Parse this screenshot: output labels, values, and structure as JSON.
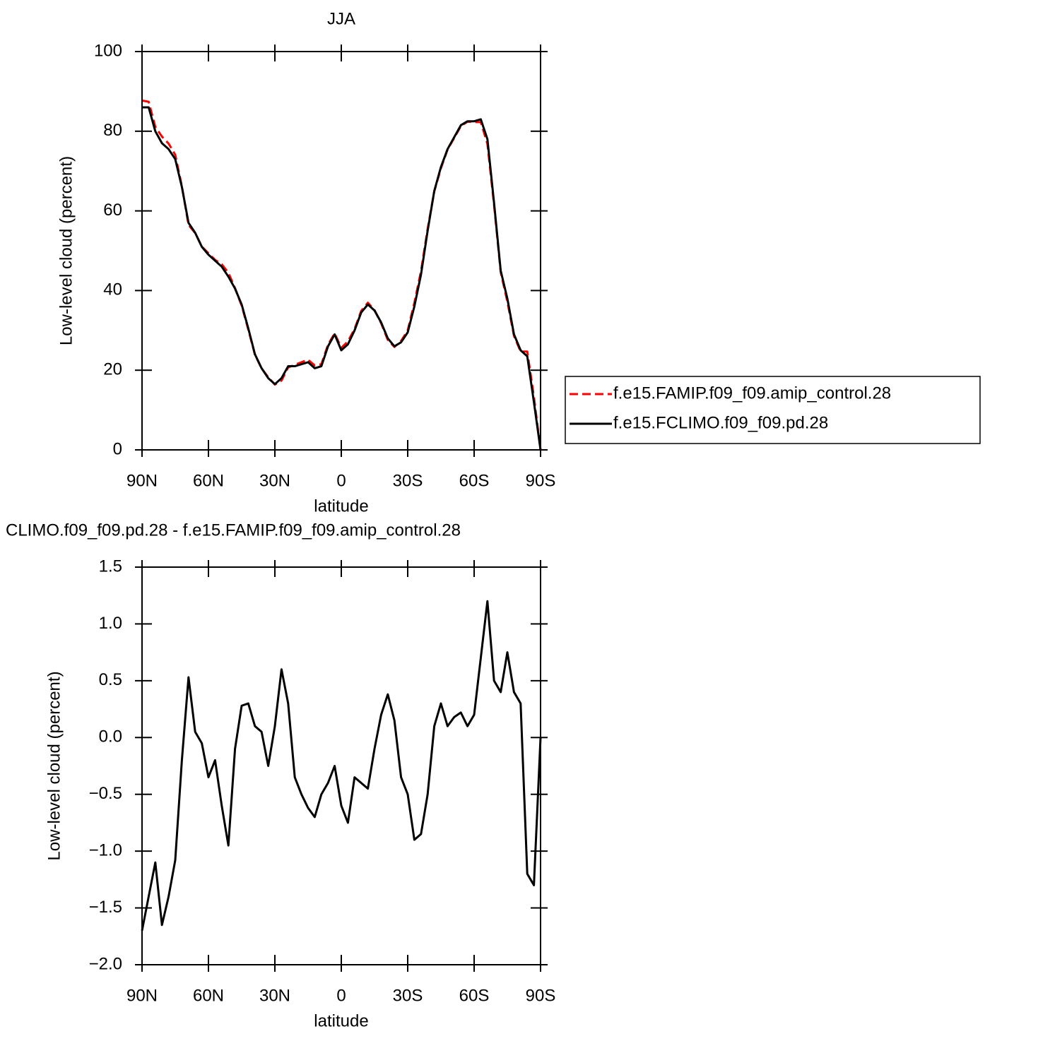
{
  "chart_data": [
    {
      "type": "line",
      "title": "JJA",
      "xlabel": "latitude",
      "ylabel": "Low-level cloud (percent)",
      "x": [
        90,
        87,
        84,
        81,
        78,
        75,
        72,
        69,
        66,
        63,
        60,
        57,
        54,
        51,
        48,
        45,
        42,
        39,
        36,
        33,
        30,
        27,
        24,
        21,
        18,
        15,
        12,
        9,
        6,
        3,
        0,
        -3,
        -6,
        -9,
        -12,
        -15,
        -18,
        -21,
        -24,
        -27,
        -30,
        -33,
        -36,
        -39,
        -42,
        -45,
        -48,
        -51,
        -54,
        -57,
        -60,
        -63,
        -66,
        -69,
        -72,
        -75,
        -78,
        -81,
        -84,
        -87,
        -90
      ],
      "series": [
        {
          "name": "f.e15.FAMIP.f09_f09.amip_control.28",
          "color": "#ff0000",
          "dashed": true,
          "values": [
            87.7,
            87.4,
            81.1,
            78.65,
            76.9,
            74.08,
            66.2,
            56.47,
            54.45,
            51.05,
            49.35,
            47.7,
            46.6,
            44.45,
            40.6,
            36.22,
            30.2,
            23.9,
            20.45,
            18.25,
            16.4,
            17.4,
            20.7,
            21.35,
            22,
            22.62,
            21.2,
            21.5,
            26.4,
            29.25,
            25.6,
            27.25,
            30.35,
            34.9,
            36.95,
            35.1,
            31.8,
            27.62,
            25.85,
            27.35,
            30,
            36.9,
            44.85,
            55.5,
            64.9,
            70.7,
            75.4,
            78.32,
            81.28,
            82.4,
            82.3,
            82.3,
            76.8,
            61.5,
            44.6,
            37.25,
            28.6,
            24.7,
            24.7,
            13.3,
            0
          ]
        },
        {
          "name": "f.e15.FCLIMO.f09_f09.pd.28",
          "color": "#000000",
          "dashed": false,
          "values": [
            86,
            86,
            80,
            77,
            75.5,
            73,
            66,
            57,
            54.5,
            51,
            49,
            47.5,
            46,
            43.5,
            40.5,
            36.5,
            30.5,
            24,
            20.5,
            18,
            16.5,
            18,
            21,
            21,
            21.5,
            22,
            20.5,
            21,
            26,
            29,
            25,
            26.5,
            30,
            34.5,
            36.5,
            35,
            32,
            28,
            26,
            27,
            29.5,
            36,
            44,
            55,
            65,
            71,
            75.5,
            78.5,
            81.5,
            82.5,
            82.5,
            83,
            78,
            62,
            45,
            38,
            29,
            25,
            23.5,
            12,
            0
          ]
        }
      ],
      "xlim": [
        90,
        -90
      ],
      "xticks": [
        {
          "value": 90,
          "label": "90N"
        },
        {
          "value": 60,
          "label": "60N"
        },
        {
          "value": 30,
          "label": "30N"
        },
        0,
        {
          "value": -30,
          "label": "30S"
        },
        {
          "value": -60,
          "label": "60S"
        },
        {
          "value": -90,
          "label": "90S"
        }
      ],
      "ylim": [
        0,
        100
      ],
      "yticks": [
        0,
        20,
        40,
        60,
        80,
        100
      ],
      "legend": "right"
    },
    {
      "type": "line",
      "title": "CLIMO.f09_f09.pd.28 - f.e15.FAMIP.f09_f09.amip_control.28",
      "xlabel": "latitude",
      "ylabel": "Low-level cloud (percent)",
      "x": [
        90,
        87,
        84,
        81,
        78,
        75,
        72,
        69,
        66,
        63,
        60,
        57,
        54,
        51,
        48,
        45,
        42,
        39,
        36,
        33,
        30,
        27,
        24,
        21,
        18,
        15,
        12,
        9,
        6,
        3,
        0,
        -3,
        -6,
        -9,
        -12,
        -15,
        -18,
        -21,
        -24,
        -27,
        -30,
        -33,
        -36,
        -39,
        -42,
        -45,
        -48,
        -51,
        -54,
        -57,
        -60,
        -63,
        -66,
        -69,
        -72,
        -75,
        -78,
        -81,
        -84,
        -87,
        -90
      ],
      "series": [
        {
          "color": "#000000",
          "dashed": false,
          "values": [
            -1.7,
            -1.4,
            -1.1,
            -1.65,
            -1.4,
            -1.08,
            -0.2,
            0.53,
            0.05,
            -0.05,
            -0.35,
            -0.2,
            -0.6,
            -0.95,
            -0.1,
            0.28,
            0.3,
            0.1,
            0.05,
            -0.25,
            0.1,
            0.6,
            0.3,
            -0.35,
            -0.5,
            -0.62,
            -0.7,
            -0.5,
            -0.4,
            -0.25,
            -0.6,
            -0.75,
            -0.35,
            -0.4,
            -0.45,
            -0.1,
            0.2,
            0.38,
            0.15,
            -0.35,
            -0.5,
            -0.9,
            -0.85,
            -0.5,
            0.1,
            0.3,
            0.1,
            0.18,
            0.22,
            0.1,
            0.2,
            0.7,
            1.2,
            0.5,
            0.4,
            0.75,
            0.4,
            0.3,
            -1.2,
            -1.3,
            0
          ]
        }
      ],
      "xlim": [
        90,
        -90
      ],
      "xticks": [
        {
          "value": 90,
          "label": "90N"
        },
        {
          "value": 60,
          "label": "60N"
        },
        {
          "value": 30,
          "label": "30N"
        },
        0,
        {
          "value": -30,
          "label": "30S"
        },
        {
          "value": -60,
          "label": "60S"
        },
        {
          "value": -90,
          "label": "90S"
        }
      ],
      "ylim": [
        -2,
        1.5
      ],
      "yticks": [
        {
          "value": -2,
          "label": "−2.0"
        },
        {
          "value": -1.5,
          "label": "−1.5"
        },
        {
          "value": -1,
          "label": "−1.0"
        },
        {
          "value": -0.5,
          "label": "−0.5"
        },
        {
          "value": 0,
          "label": "0.0"
        },
        0.5,
        {
          "value": 1,
          "label": "1.0"
        },
        1.5
      ]
    }
  ]
}
